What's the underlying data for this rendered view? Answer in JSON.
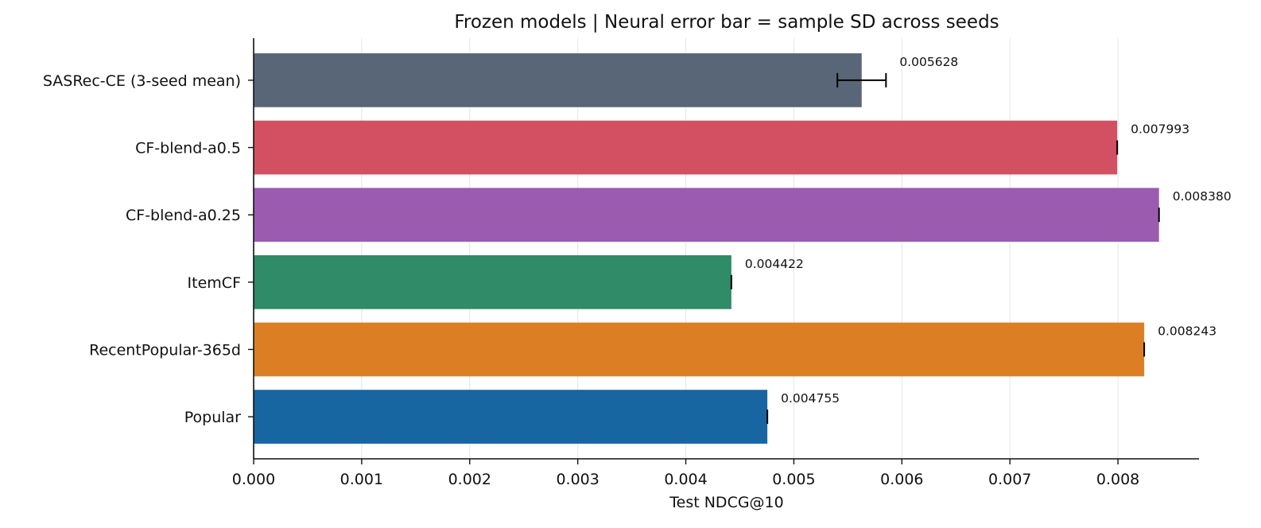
{
  "chart_data": {
    "type": "bar",
    "orientation": "horizontal",
    "title": "Frozen models | Neural error bar = sample SD across seeds",
    "xlabel": "Test NDCG@10",
    "ylabel": "",
    "xlim": [
      0,
      0.00875
    ],
    "xticks": [
      0,
      0.001,
      0.002,
      0.003,
      0.004,
      0.005,
      0.006,
      0.007,
      0.008
    ],
    "xtick_labels": [
      "0.000",
      "0.001",
      "0.002",
      "0.003",
      "0.004",
      "0.005",
      "0.006",
      "0.007",
      "0.008"
    ],
    "grid": "x",
    "categories": [
      "SASRec-CE (3-seed mean)",
      "CF-blend-a0.5",
      "CF-blend-a0.25",
      "ItemCF",
      "RecentPopular-365d",
      "Popular"
    ],
    "values": [
      0.005628,
      0.007993,
      0.00838,
      0.004422,
      0.008243,
      0.004755
    ],
    "value_labels": [
      "0.005628",
      "0.007993",
      "0.008380",
      "0.004422",
      "0.008243",
      "0.004755"
    ],
    "errors": [
      0.000225,
      0,
      0,
      0,
      0,
      0
    ],
    "colors": [
      "#596677",
      "#d35062",
      "#9b5caf",
      "#2f8b68",
      "#dc7f24",
      "#1766a1"
    ]
  }
}
